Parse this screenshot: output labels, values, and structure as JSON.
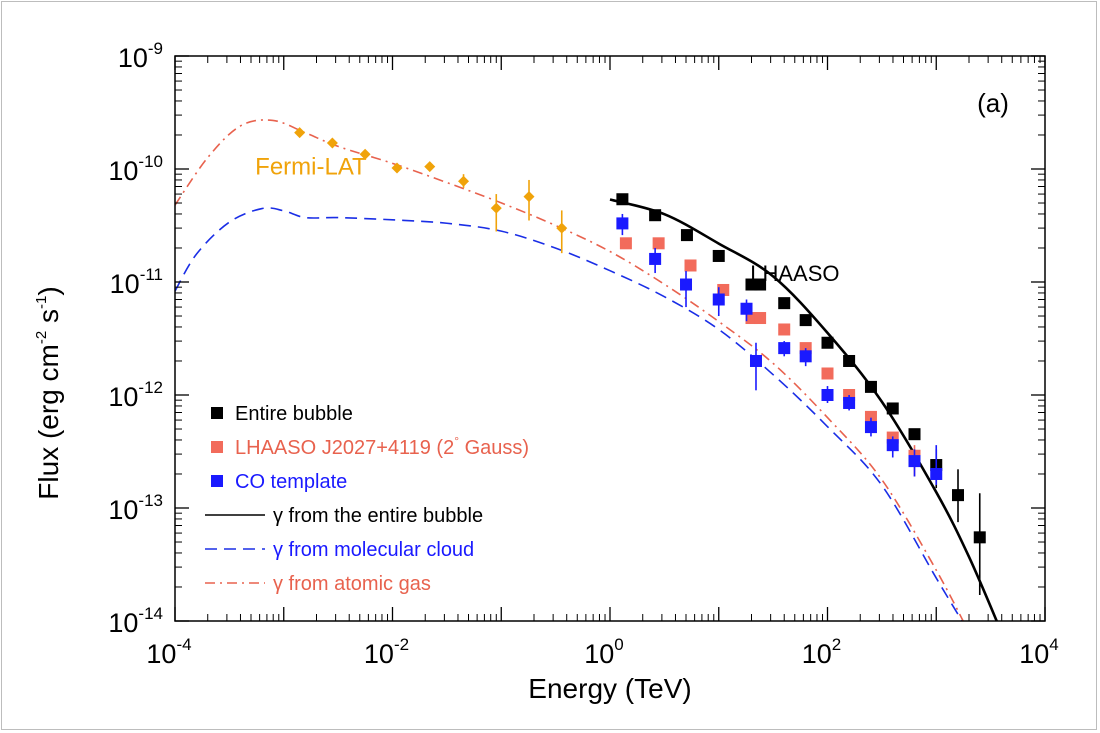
{
  "chart_data": {
    "type": "scatter",
    "panel_label": "(a)",
    "xlabel": "Energy (TeV)",
    "ylabel": "Flux (erg cm",
    "ylabel_exp1": "-2",
    "ylabel_mid": " s",
    "ylabel_exp2": "-1",
    "ylabel_end": ")",
    "x_log_range": [
      -4,
      4
    ],
    "y_log_range": [
      -14,
      -9
    ],
    "x_ticks": [
      {
        "exp": -4,
        "base": "10",
        "sup": "-4"
      },
      {
        "exp": -2,
        "base": "10",
        "sup": "-2"
      },
      {
        "exp": 0,
        "base": "10",
        "sup": "0"
      },
      {
        "exp": 2,
        "base": "10",
        "sup": "2"
      },
      {
        "exp": 4,
        "base": "10",
        "sup": "4"
      }
    ],
    "y_ticks": [
      {
        "exp": -9,
        "base": "10",
        "sup": "-9"
      },
      {
        "exp": -10,
        "base": "10",
        "sup": "-10"
      },
      {
        "exp": -11,
        "base": "10",
        "sup": "-11"
      },
      {
        "exp": -12,
        "base": "10",
        "sup": "-12"
      },
      {
        "exp": -13,
        "base": "10",
        "sup": "-13"
      },
      {
        "exp": -14,
        "base": "10",
        "sup": "-14"
      }
    ],
    "annotations": {
      "fermi": {
        "text": "Fermi-LAT",
        "color": "#f0a30a",
        "logx": -2.75,
        "logy": -9.98
      },
      "lhaaso": {
        "text": "LHAASO",
        "color": "#000000",
        "logx": 1.7,
        "logy": -10.92
      }
    },
    "series": [
      {
        "name": "Fermi-LAT",
        "color": "#f0a30a",
        "marker": "diamond",
        "points": [
          {
            "x": 0.0014,
            "y": 2.1e-10
          },
          {
            "x": 0.0028,
            "y": 1.7e-10
          },
          {
            "x": 0.0056,
            "y": 1.35e-10
          },
          {
            "x": 0.011,
            "y": 1.02e-10
          },
          {
            "x": 0.022,
            "y": 1.05e-10
          },
          {
            "x": 0.045,
            "y": 7.8e-11,
            "ylo": 6.8e-11,
            "yhi": 9e-11
          },
          {
            "x": 0.09,
            "y": 4.5e-11,
            "ylo": 2.8e-11,
            "yhi": 6e-11
          },
          {
            "x": 0.18,
            "y": 5.7e-11,
            "ylo": 3.5e-11,
            "yhi": 8e-11
          },
          {
            "x": 0.36,
            "y": 3e-11,
            "ylo": 1.8e-11,
            "yhi": 4.3e-11
          }
        ]
      },
      {
        "name": "Entire bubble",
        "color": "#000000",
        "marker": "square",
        "points": [
          {
            "x": 1.3,
            "y": 5.4e-11
          },
          {
            "x": 2.6,
            "y": 3.9e-11
          },
          {
            "x": 5.1,
            "y": 2.6e-11
          },
          {
            "x": 10,
            "y": 1.7e-11
          },
          {
            "x": 20,
            "y": 9.5e-12
          },
          {
            "x": 24,
            "y": 9.5e-12
          },
          {
            "x": 40,
            "y": 6.5e-12
          },
          {
            "x": 63,
            "y": 4.6e-12
          },
          {
            "x": 100,
            "y": 2.9e-12
          },
          {
            "x": 158,
            "y": 2e-12
          },
          {
            "x": 251,
            "y": 1.18e-12
          },
          {
            "x": 398,
            "y": 7.6e-13
          },
          {
            "x": 631,
            "y": 4.5e-13
          },
          {
            "x": 1000,
            "y": 2.4e-13,
            "ylo": 1.5e-13,
            "yhi": 3.3e-13
          },
          {
            "x": 1585,
            "y": 1.3e-13,
            "ylo": 7.5e-14,
            "yhi": 2.2e-13
          },
          {
            "x": 2512,
            "y": 5.5e-14,
            "ylo": 1.7e-14,
            "yhi": 1.35e-13
          }
        ]
      },
      {
        "name": "LHAASO J2027+4119 (2° Gauss)",
        "color": "#f26b5b",
        "marker": "square",
        "points": [
          {
            "x": 1.4,
            "y": 2.2e-11
          },
          {
            "x": 2.8,
            "y": 2.2e-11
          },
          {
            "x": 5.5,
            "y": 1.4e-11
          },
          {
            "x": 11,
            "y": 8.5e-12
          },
          {
            "x": 20,
            "y": 4.8e-12
          },
          {
            "x": 24,
            "y": 4.8e-12
          },
          {
            "x": 40,
            "y": 3.8e-12
          },
          {
            "x": 63,
            "y": 2.6e-12
          },
          {
            "x": 100,
            "y": 1.55e-12
          },
          {
            "x": 158,
            "y": 1e-12
          },
          {
            "x": 251,
            "y": 6.4e-13
          },
          {
            "x": 398,
            "y": 4.2e-13
          },
          {
            "x": 631,
            "y": 2.9e-13,
            "ylo": 1.9e-13,
            "yhi": 3.6e-13
          }
        ]
      },
      {
        "name": "CO template",
        "color": "#1a1aff",
        "marker": "square",
        "points": [
          {
            "x": 1.3,
            "y": 3.3e-11,
            "ylo": 2.6e-11,
            "yhi": 4e-11
          },
          {
            "x": 2.6,
            "y": 1.6e-11,
            "ylo": 1.2e-11,
            "yhi": 2e-11
          },
          {
            "x": 5.0,
            "y": 9.5e-12,
            "ylo": 6e-12,
            "yhi": 1.25e-11
          },
          {
            "x": 10,
            "y": 7e-12,
            "ylo": 5e-12,
            "yhi": 9e-12
          },
          {
            "x": 18,
            "y": 5.8e-12,
            "ylo": 4.5e-12,
            "yhi": 7e-12
          },
          {
            "x": 22,
            "y": 2e-12,
            "ylo": 1.1e-12,
            "yhi": 2.9e-12
          },
          {
            "x": 40,
            "y": 2.6e-12,
            "ylo": 2.2e-12,
            "yhi": 3e-12
          },
          {
            "x": 63,
            "y": 2.2e-12,
            "ylo": 1.8e-12,
            "yhi": 2.6e-12
          },
          {
            "x": 100,
            "y": 1e-12,
            "ylo": 8.5e-13,
            "yhi": 1.2e-12
          },
          {
            "x": 158,
            "y": 8.5e-13,
            "ylo": 7.3e-13,
            "yhi": 1e-12
          },
          {
            "x": 251,
            "y": 5.2e-13,
            "ylo": 4.3e-13,
            "yhi": 6.3e-13
          },
          {
            "x": 398,
            "y": 3.6e-13,
            "ylo": 2.8e-13,
            "yhi": 4.3e-13
          },
          {
            "x": 631,
            "y": 2.6e-13,
            "ylo": 1.9e-13,
            "yhi": 3.3e-13
          },
          {
            "x": 1000,
            "y": 2e-13,
            "ylo": 1.6e-13,
            "yhi": 3.6e-13
          }
        ]
      }
    ],
    "models": [
      {
        "name": "γ from the entire bubble",
        "color": "#000000",
        "dash": "solid",
        "points": [
          [
            0.0,
            -10.27
          ],
          [
            0.5,
            -10.4
          ],
          [
            1.0,
            -10.66
          ],
          [
            1.5,
            -10.95
          ],
          [
            2.0,
            -11.45
          ],
          [
            2.5,
            -12.06
          ],
          [
            3.0,
            -12.86
          ],
          [
            3.3,
            -13.43
          ],
          [
            3.6,
            -14.1
          ]
        ]
      },
      {
        "name": "γ from molecular cloud",
        "color": "#1a2ee6",
        "dash": "dashed",
        "points": [
          [
            -4.0,
            -11.08
          ],
          [
            -3.8,
            -10.75
          ],
          [
            -3.5,
            -10.47
          ],
          [
            -3.2,
            -10.35
          ],
          [
            -3.0,
            -10.37
          ],
          [
            -2.8,
            -10.43
          ],
          [
            -2.5,
            -10.43
          ],
          [
            -2.0,
            -10.45
          ],
          [
            -1.5,
            -10.48
          ],
          [
            -1.0,
            -10.55
          ],
          [
            -0.5,
            -10.7
          ],
          [
            0.0,
            -10.9
          ],
          [
            0.5,
            -11.13
          ],
          [
            1.0,
            -11.42
          ],
          [
            1.5,
            -11.82
          ],
          [
            2.0,
            -12.28
          ],
          [
            2.5,
            -12.8
          ],
          [
            3.0,
            -13.62
          ],
          [
            3.3,
            -14.1
          ]
        ]
      },
      {
        "name": "γ from atomic gas",
        "color": "#e8624e",
        "dash": "dashdot",
        "points": [
          [
            -4.0,
            -10.32
          ],
          [
            -3.7,
            -9.9
          ],
          [
            -3.4,
            -9.62
          ],
          [
            -3.1,
            -9.57
          ],
          [
            -2.8,
            -9.68
          ],
          [
            -2.5,
            -9.8
          ],
          [
            -2.0,
            -9.95
          ],
          [
            -1.5,
            -10.12
          ],
          [
            -1.0,
            -10.3
          ],
          [
            -0.5,
            -10.5
          ],
          [
            0.0,
            -10.73
          ],
          [
            0.5,
            -11.02
          ],
          [
            1.0,
            -11.35
          ],
          [
            1.5,
            -11.72
          ],
          [
            2.0,
            -12.2
          ],
          [
            2.5,
            -12.75
          ],
          [
            3.0,
            -13.55
          ],
          [
            3.3,
            -14.1
          ]
        ]
      }
    ],
    "legend": [
      {
        "type": "marker",
        "color": "#000000",
        "label": "Entire bubble",
        "textcolor": "#000000"
      },
      {
        "type": "marker",
        "color": "#f26b5b",
        "label": "LHAASO J2027+4119 (2",
        "label_sup": "°",
        "label_end": " Gauss)",
        "textcolor": "#e8624e"
      },
      {
        "type": "marker",
        "color": "#1a1aff",
        "label": "CO template",
        "textcolor": "#1a1aff"
      },
      {
        "type": "line",
        "dash": "solid",
        "color": "#000000",
        "label": "γ  from the entire bubble",
        "textcolor": "#000000"
      },
      {
        "type": "line",
        "dash": "dashed",
        "color": "#1a2ee6",
        "label": "γ  from molecular cloud",
        "textcolor": "#1a1aff"
      },
      {
        "type": "line",
        "dash": "dashdot",
        "color": "#e8624e",
        "label": "γ  from atomic gas",
        "textcolor": "#e8624e"
      }
    ]
  }
}
